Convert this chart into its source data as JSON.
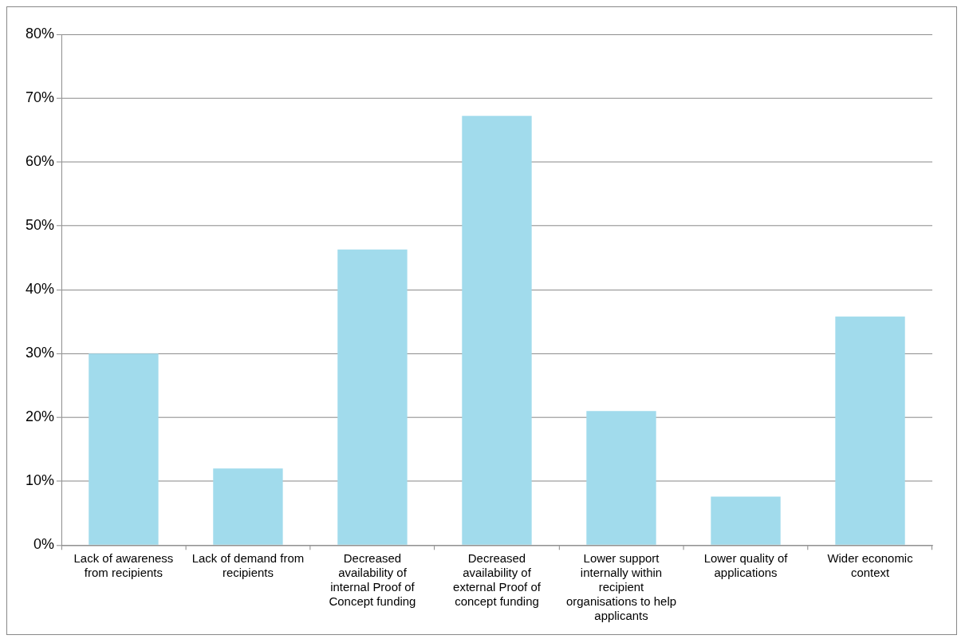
{
  "chart_data": {
    "type": "bar",
    "categories": [
      "Lack of awareness from recipients",
      "Lack of demand from recipients",
      "Decreased availability of internal Proof of Concept funding",
      "Decreased availability of external Proof of concept funding",
      "Lower support internally within recipient organisations to help applicants",
      "Lower quality of applications",
      "Wider economic context"
    ],
    "values": [
      30,
      12,
      46.3,
      67.2,
      21,
      7.6,
      35.8
    ],
    "color": "#a1dbec",
    "ylim": [
      0,
      80
    ],
    "yticks": [
      {
        "value": 0,
        "label": "0%"
      },
      {
        "value": 10,
        "label": "10%"
      },
      {
        "value": 20,
        "label": "20%"
      },
      {
        "value": 30,
        "label": "30%"
      },
      {
        "value": 40,
        "label": "40%"
      },
      {
        "value": 50,
        "label": "50%"
      },
      {
        "value": 60,
        "label": "60%"
      },
      {
        "value": 70,
        "label": "70%"
      },
      {
        "value": 80,
        "label": "80%"
      }
    ],
    "grid": "y",
    "legend": false
  }
}
